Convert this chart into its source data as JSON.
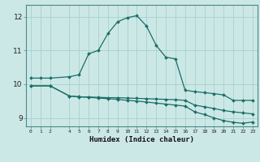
{
  "xlabel": "Humidex (Indice chaleur)",
  "background_color": "#cce8e6",
  "grid_color": "#aad4d0",
  "line_color": "#1a6e68",
  "xlim": [
    -0.5,
    23.5
  ],
  "ylim": [
    8.75,
    12.35
  ],
  "yticks": [
    9,
    10,
    11,
    12
  ],
  "xtick_positions": [
    0,
    1,
    2,
    4,
    5,
    6,
    7,
    8,
    9,
    10,
    11,
    12,
    13,
    14,
    15,
    16,
    17,
    18,
    19,
    20,
    21,
    22,
    23
  ],
  "xtick_labels": [
    "0",
    "1",
    "2",
    "4",
    "5",
    "6",
    "7",
    "8",
    "9",
    "10",
    "11",
    "12",
    "13",
    "14",
    "15",
    "16",
    "17",
    "18",
    "19",
    "20",
    "21",
    "22",
    "23"
  ],
  "curve1_x": [
    0,
    1,
    2,
    4,
    5,
    6,
    7,
    8,
    9,
    10,
    11,
    12,
    13,
    14,
    15,
    16,
    17,
    18,
    19,
    20,
    21,
    22,
    23
  ],
  "curve1_y": [
    10.18,
    10.18,
    10.18,
    10.22,
    10.28,
    10.9,
    11.0,
    11.5,
    11.85,
    11.97,
    12.03,
    11.72,
    11.15,
    10.8,
    10.75,
    9.82,
    9.78,
    9.75,
    9.72,
    9.68,
    9.52,
    9.52,
    9.52
  ],
  "curve2_x": [
    0,
    2,
    4,
    5,
    6,
    7,
    8,
    9,
    10,
    11,
    12,
    13,
    14,
    15,
    16,
    17,
    18,
    19,
    20,
    21,
    22,
    23
  ],
  "curve2_y": [
    9.95,
    9.95,
    9.65,
    9.62,
    9.62,
    9.61,
    9.6,
    9.6,
    9.59,
    9.58,
    9.57,
    9.56,
    9.55,
    9.54,
    9.52,
    9.38,
    9.33,
    9.28,
    9.22,
    9.18,
    9.15,
    9.12
  ],
  "curve3_x": [
    0,
    2,
    4,
    5,
    6,
    7,
    8,
    9,
    10,
    11,
    12,
    13,
    14,
    15,
    16,
    17,
    18,
    19,
    20,
    21,
    22,
    23
  ],
  "curve3_y": [
    9.95,
    9.95,
    9.65,
    9.63,
    9.61,
    9.59,
    9.57,
    9.55,
    9.52,
    9.5,
    9.47,
    9.44,
    9.41,
    9.38,
    9.35,
    9.18,
    9.1,
    9.0,
    8.92,
    8.87,
    8.84,
    8.88
  ]
}
